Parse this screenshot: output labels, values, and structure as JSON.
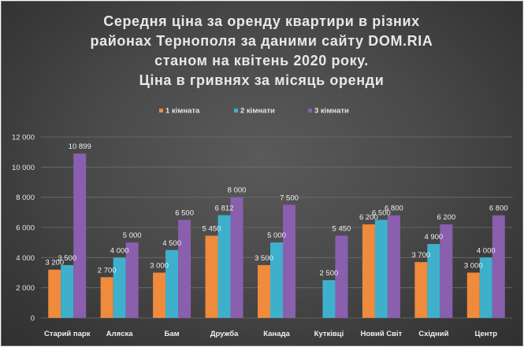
{
  "chart_data": {
    "type": "bar",
    "title_lines": [
      "Середня ціна за оренду квартири в різних",
      "районах Тернополя за даними сайту DOM.RIA",
      "станом на квітень 2020 року.",
      "Ціна в гривнях за місяць оренди"
    ],
    "categories": [
      "Старий парк",
      "Аляска",
      "Бам",
      "Дружба",
      "Канада",
      "Кутківці",
      "Новий Світ",
      "Східний",
      "Центр"
    ],
    "series": [
      {
        "name": "1 кімната",
        "color": "#f08a3c",
        "values": [
          3200,
          2700,
          3000,
          5450,
          3500,
          null,
          6200,
          3700,
          3000
        ],
        "labels": [
          "3 200",
          "2 700",
          "3 000",
          "5 450",
          "3 500",
          "",
          "6 200",
          "3 700",
          "3 000"
        ]
      },
      {
        "name": "2 кімнати",
        "color": "#3fb0cc",
        "values": [
          3500,
          4000,
          4500,
          6812,
          5000,
          2500,
          6500,
          4900,
          4000
        ],
        "labels": [
          "3 500",
          "4 000",
          "4 500",
          "6 812",
          "5 000",
          "2 500",
          "6 500",
          "4 900",
          "4 000"
        ]
      },
      {
        "name": "3 кімнати",
        "color": "#8a5fae",
        "values": [
          10899,
          5000,
          6500,
          8000,
          7500,
          5450,
          6800,
          6200,
          6800
        ],
        "labels": [
          "10 899",
          "5 000",
          "6 500",
          "8 000",
          "7 500",
          "5 450",
          "6 800",
          "6 200",
          "6 800"
        ]
      }
    ],
    "y_ticks": [
      "0",
      "2 000",
      "4 000",
      "6 000",
      "8 000",
      "10 000",
      "12 000"
    ],
    "ylim": [
      0,
      12000
    ],
    "grid": true,
    "legend_position": "top"
  }
}
